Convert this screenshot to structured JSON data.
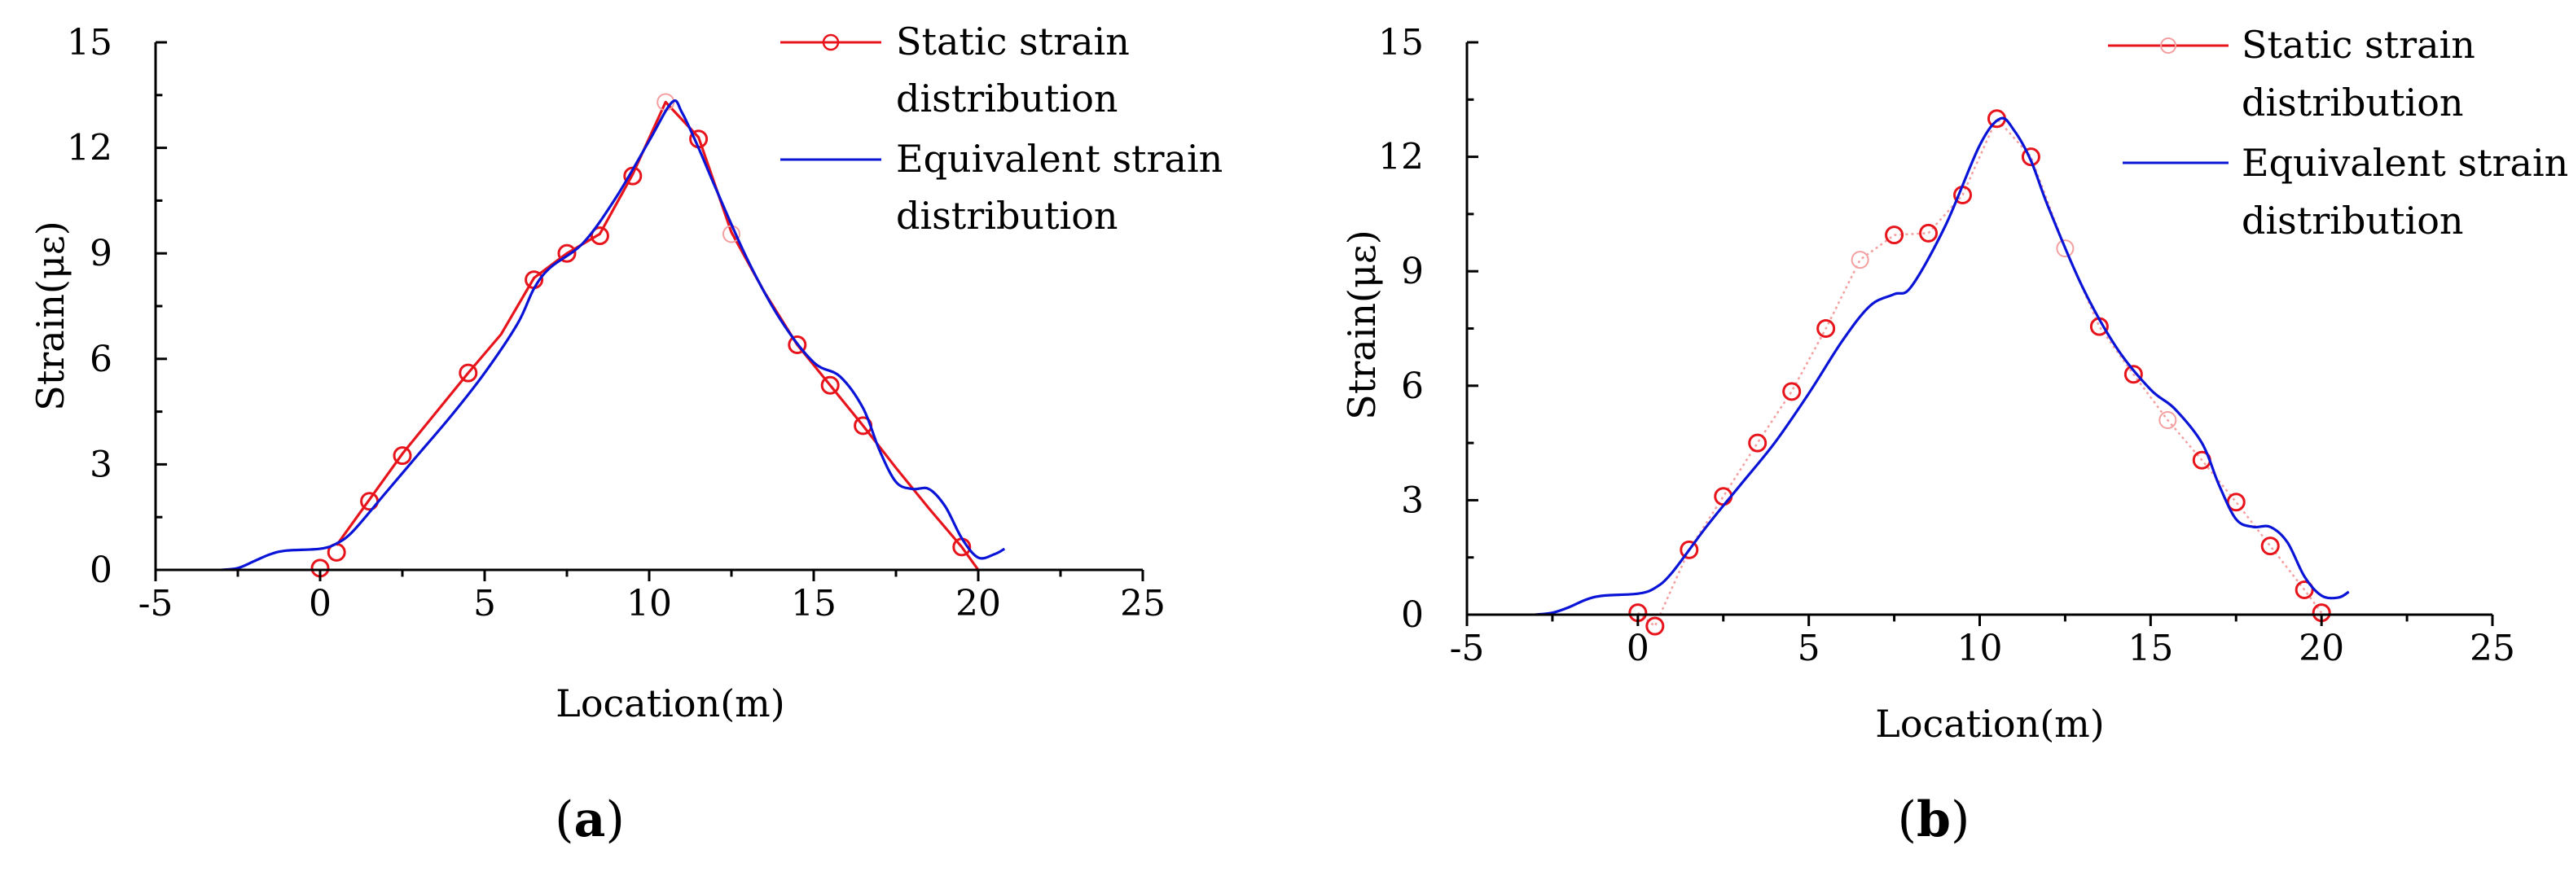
{
  "figure": {
    "panels": [
      {
        "label_open": "(",
        "label_letter": "a",
        "label_close": ")"
      },
      {
        "label_open": "(",
        "label_letter": "b",
        "label_close": ")"
      }
    ]
  },
  "colors": {
    "static": "#e8141c",
    "static_dotted": "#f4a0a0",
    "equivalent": "#0a14d6",
    "axis": "#000000"
  },
  "chart_data": [
    {
      "type": "line",
      "panel": "a",
      "xlabel": "Location(m)",
      "ylabel": "Strain(με)",
      "xlim": [
        -5,
        25
      ],
      "ylim": [
        0,
        15
      ],
      "xticks": [
        -5,
        0,
        5,
        10,
        15,
        20,
        25
      ],
      "yticks": [
        0,
        3,
        6,
        9,
        12,
        15
      ],
      "legend_position": "top-right",
      "series": [
        {
          "name": "Static strain distribution",
          "legend_lines": [
            "Static strain",
            "distribution"
          ],
          "style": "line-with-circle-markers",
          "line": [
            [
              0.5,
              0.7
            ],
            [
              1.5,
              2.0
            ],
            [
              2.5,
              3.3
            ],
            [
              3.5,
              4.45
            ],
            [
              4.5,
              5.6
            ],
            [
              5.5,
              6.7
            ],
            [
              6.5,
              8.3
            ],
            [
              7.5,
              9.0
            ],
            [
              8.5,
              9.55
            ],
            [
              9.5,
              11.25
            ],
            [
              10.5,
              13.3
            ],
            [
              11.5,
              12.3
            ],
            [
              12.5,
              9.6
            ],
            [
              13.5,
              7.9
            ],
            [
              14.5,
              6.4
            ],
            [
              15.5,
              5.25
            ],
            [
              16.5,
              4.1
            ],
            [
              17.5,
              2.9
            ],
            [
              18.5,
              1.75
            ],
            [
              19.5,
              0.65
            ],
            [
              20.0,
              0.0
            ]
          ],
          "markers": [
            [
              0.0,
              0.05
            ],
            [
              0.5,
              0.5
            ],
            [
              1.5,
              1.95
            ],
            [
              2.5,
              3.25
            ],
            [
              4.5,
              5.6
            ],
            [
              6.5,
              8.25
            ],
            [
              7.5,
              9.0
            ],
            [
              8.5,
              9.5
            ],
            [
              9.5,
              11.2
            ],
            [
              11.5,
              12.25
            ],
            [
              14.5,
              6.4
            ],
            [
              15.5,
              5.25
            ],
            [
              16.5,
              4.1
            ],
            [
              19.5,
              0.65
            ]
          ],
          "faint_markers": [
            [
              10.5,
              13.3
            ],
            [
              12.5,
              9.55
            ]
          ]
        },
        {
          "name": "Equivalent strain distribution",
          "legend_lines": [
            "Equivalent strain",
            "distribution"
          ],
          "style": "line",
          "points": [
            [
              -3.0,
              0.0
            ],
            [
              -2.5,
              0.05
            ],
            [
              -2.0,
              0.25
            ],
            [
              -1.5,
              0.45
            ],
            [
              -1.0,
              0.55
            ],
            [
              0.0,
              0.6
            ],
            [
              0.5,
              0.75
            ],
            [
              1.0,
              1.1
            ],
            [
              2.0,
              2.2
            ],
            [
              3.0,
              3.3
            ],
            [
              4.0,
              4.4
            ],
            [
              5.0,
              5.6
            ],
            [
              6.0,
              7.0
            ],
            [
              6.5,
              8.0
            ],
            [
              7.0,
              8.6
            ],
            [
              8.0,
              9.3
            ],
            [
              9.0,
              10.6
            ],
            [
              10.0,
              12.2
            ],
            [
              10.7,
              13.3
            ],
            [
              11.0,
              13.0
            ],
            [
              11.5,
              12.0
            ],
            [
              12.0,
              10.9
            ],
            [
              13.0,
              8.8
            ],
            [
              14.0,
              7.1
            ],
            [
              15.0,
              5.9
            ],
            [
              15.8,
              5.5
            ],
            [
              16.5,
              4.6
            ],
            [
              17.0,
              3.4
            ],
            [
              17.5,
              2.5
            ],
            [
              18.0,
              2.3
            ],
            [
              18.5,
              2.3
            ],
            [
              19.0,
              1.8
            ],
            [
              19.5,
              0.9
            ],
            [
              20.0,
              0.35
            ],
            [
              20.5,
              0.45
            ],
            [
              20.8,
              0.6
            ]
          ]
        }
      ]
    },
    {
      "type": "line",
      "panel": "b",
      "xlabel": "Location(m)",
      "ylabel": "Strain(με)",
      "xlim": [
        -5,
        25
      ],
      "ylim": [
        0,
        15
      ],
      "xticks": [
        -5,
        0,
        5,
        10,
        15,
        20,
        25
      ],
      "yticks": [
        0,
        3,
        6,
        9,
        12,
        15
      ],
      "legend_position": "top-right",
      "series": [
        {
          "name": "Static strain distribution",
          "legend_lines": [
            "Static strain",
            "distribution"
          ],
          "style": "dotted-line-with-circle-markers",
          "line": [
            [
              0.0,
              0.05
            ],
            [
              0.5,
              -0.3
            ],
            [
              1.5,
              1.7
            ],
            [
              2.5,
              3.1
            ],
            [
              3.5,
              4.5
            ],
            [
              4.5,
              5.85
            ],
            [
              5.5,
              7.5
            ],
            [
              6.5,
              9.3
            ],
            [
              7.5,
              9.95
            ],
            [
              8.5,
              10.0
            ],
            [
              9.5,
              11.0
            ],
            [
              10.5,
              13.0
            ],
            [
              11.5,
              12.0
            ],
            [
              12.5,
              9.6
            ],
            [
              13.5,
              7.55
            ],
            [
              14.5,
              6.3
            ],
            [
              15.5,
              5.1
            ],
            [
              16.5,
              4.05
            ],
            [
              17.5,
              2.95
            ],
            [
              18.5,
              1.8
            ],
            [
              19.5,
              0.65
            ],
            [
              20.0,
              0.05
            ]
          ],
          "markers": [
            [
              0.0,
              0.05
            ],
            [
              0.5,
              -0.3
            ],
            [
              1.5,
              1.7
            ],
            [
              2.5,
              3.1
            ],
            [
              3.5,
              4.5
            ],
            [
              4.5,
              5.85
            ],
            [
              5.5,
              7.5
            ],
            [
              7.5,
              9.95
            ],
            [
              8.5,
              10.0
            ],
            [
              9.5,
              11.0
            ],
            [
              10.5,
              13.0
            ],
            [
              11.5,
              12.0
            ],
            [
              13.5,
              7.55
            ],
            [
              14.5,
              6.3
            ],
            [
              16.5,
              4.05
            ],
            [
              17.5,
              2.95
            ],
            [
              18.5,
              1.8
            ],
            [
              19.5,
              0.65
            ],
            [
              20.0,
              0.05
            ]
          ],
          "faint_markers": [
            [
              6.5,
              9.3
            ],
            [
              12.5,
              9.6
            ],
            [
              15.5,
              5.1
            ]
          ]
        },
        {
          "name": "Equivalent strain distribution",
          "legend_lines": [
            "Equivalent strain",
            "distribution"
          ],
          "style": "line",
          "points": [
            [
              -3.0,
              0.0
            ],
            [
              -2.5,
              0.05
            ],
            [
              -2.0,
              0.2
            ],
            [
              -1.5,
              0.4
            ],
            [
              -1.0,
              0.5
            ],
            [
              0.0,
              0.55
            ],
            [
              0.5,
              0.7
            ],
            [
              1.0,
              1.1
            ],
            [
              2.0,
              2.3
            ],
            [
              3.0,
              3.4
            ],
            [
              4.0,
              4.5
            ],
            [
              5.0,
              5.8
            ],
            [
              6.0,
              7.2
            ],
            [
              6.8,
              8.1
            ],
            [
              7.5,
              8.4
            ],
            [
              8.0,
              8.6
            ],
            [
              9.0,
              10.2
            ],
            [
              10.0,
              12.3
            ],
            [
              10.6,
              13.0
            ],
            [
              11.0,
              12.7
            ],
            [
              11.5,
              11.9
            ],
            [
              12.0,
              10.7
            ],
            [
              13.0,
              8.6
            ],
            [
              14.0,
              7.0
            ],
            [
              15.0,
              5.9
            ],
            [
              15.7,
              5.4
            ],
            [
              16.5,
              4.5
            ],
            [
              17.0,
              3.4
            ],
            [
              17.5,
              2.5
            ],
            [
              18.0,
              2.3
            ],
            [
              18.5,
              2.3
            ],
            [
              19.0,
              1.9
            ],
            [
              19.5,
              1.0
            ],
            [
              20.0,
              0.5
            ],
            [
              20.5,
              0.45
            ],
            [
              20.8,
              0.6
            ]
          ]
        }
      ]
    }
  ]
}
